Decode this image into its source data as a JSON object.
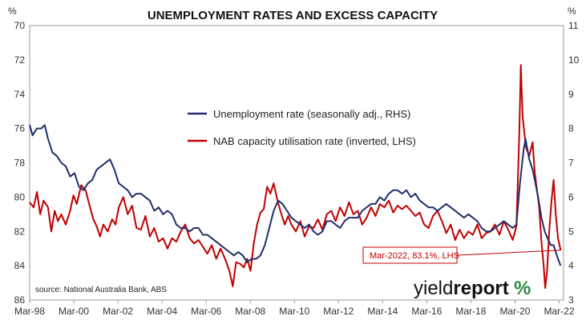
{
  "chart_data": {
    "type": "line",
    "title": "UNEMPLOYMENT RATES AND EXCESS CAPACITY",
    "left_axis_unit": "%",
    "right_axis_unit": "%",
    "left_axis": {
      "ticks": [
        70,
        72,
        74,
        76,
        78,
        80,
        82,
        84,
        86
      ],
      "range": [
        70,
        86
      ],
      "inverted": true
    },
    "right_axis": {
      "ticks": [
        3,
        4,
        5,
        6,
        7,
        8,
        9,
        10,
        11
      ],
      "range": [
        3,
        11
      ]
    },
    "x_ticks": [
      "Mar-98",
      "Mar-00",
      "Mar-02",
      "Mar-04",
      "Mar-06",
      "Mar-08",
      "Mar-10",
      "Mar-12",
      "Mar-14",
      "Mar-16",
      "Mar-18",
      "Mar-20",
      "Mar-22"
    ],
    "x_range": [
      1998.17,
      2022.3
    ],
    "source": "source: National Australia Bank, ABS",
    "brand": "yieldreport %",
    "callout": {
      "text": "Mar-2022, 83.1%, LHS",
      "x": 2022.17,
      "y": 83.1
    },
    "series": [
      {
        "name": "Unemployment rate (seasonally adj., RHS)",
        "axis": "right",
        "color": "#1f2f6b",
        "points": [
          [
            1998.17,
            8.1
          ],
          [
            1998.3,
            7.8
          ],
          [
            1998.5,
            8.0
          ],
          [
            1998.7,
            8.0
          ],
          [
            1998.85,
            8.1
          ],
          [
            1999.0,
            7.7
          ],
          [
            1999.2,
            7.3
          ],
          [
            1999.4,
            7.2
          ],
          [
            1999.6,
            7.0
          ],
          [
            1999.8,
            6.9
          ],
          [
            2000.0,
            6.6
          ],
          [
            2000.2,
            6.7
          ],
          [
            2000.4,
            6.3
          ],
          [
            2000.6,
            6.2
          ],
          [
            2000.8,
            6.4
          ],
          [
            2001.0,
            6.5
          ],
          [
            2001.2,
            6.8
          ],
          [
            2001.4,
            6.9
          ],
          [
            2001.6,
            7.0
          ],
          [
            2001.8,
            7.1
          ],
          [
            2002.0,
            6.8
          ],
          [
            2002.2,
            6.4
          ],
          [
            2002.4,
            6.3
          ],
          [
            2002.6,
            6.2
          ],
          [
            2002.8,
            6.0
          ],
          [
            2003.0,
            6.1
          ],
          [
            2003.2,
            6.1
          ],
          [
            2003.4,
            6.0
          ],
          [
            2003.6,
            5.9
          ],
          [
            2003.8,
            5.6
          ],
          [
            2004.0,
            5.7
          ],
          [
            2004.2,
            5.5
          ],
          [
            2004.4,
            5.6
          ],
          [
            2004.6,
            5.5
          ],
          [
            2004.8,
            5.2
          ],
          [
            2005.0,
            5.1
          ],
          [
            2005.2,
            5.1
          ],
          [
            2005.4,
            5.0
          ],
          [
            2005.6,
            5.1
          ],
          [
            2005.8,
            5.1
          ],
          [
            2006.0,
            4.9
          ],
          [
            2006.2,
            4.9
          ],
          [
            2006.4,
            4.8
          ],
          [
            2006.6,
            4.7
          ],
          [
            2006.8,
            4.6
          ],
          [
            2007.0,
            4.5
          ],
          [
            2007.2,
            4.4
          ],
          [
            2007.4,
            4.3
          ],
          [
            2007.6,
            4.4
          ],
          [
            2007.8,
            4.3
          ],
          [
            2008.0,
            4.1
          ],
          [
            2008.2,
            4.2
          ],
          [
            2008.4,
            4.2
          ],
          [
            2008.6,
            4.3
          ],
          [
            2008.8,
            4.6
          ],
          [
            2009.0,
            5.1
          ],
          [
            2009.2,
            5.6
          ],
          [
            2009.4,
            5.9
          ],
          [
            2009.6,
            5.8
          ],
          [
            2009.8,
            5.6
          ],
          [
            2010.0,
            5.4
          ],
          [
            2010.2,
            5.3
          ],
          [
            2010.4,
            5.2
          ],
          [
            2010.6,
            5.1
          ],
          [
            2010.8,
            5.2
          ],
          [
            2011.0,
            5.0
          ],
          [
            2011.2,
            4.9
          ],
          [
            2011.4,
            5.0
          ],
          [
            2011.6,
            5.3
          ],
          [
            2011.8,
            5.3
          ],
          [
            2012.0,
            5.2
          ],
          [
            2012.2,
            5.1
          ],
          [
            2012.4,
            5.3
          ],
          [
            2012.6,
            5.4
          ],
          [
            2012.8,
            5.4
          ],
          [
            2013.0,
            5.4
          ],
          [
            2013.2,
            5.6
          ],
          [
            2013.4,
            5.7
          ],
          [
            2013.6,
            5.8
          ],
          [
            2013.8,
            5.8
          ],
          [
            2014.0,
            6.0
          ],
          [
            2014.2,
            5.9
          ],
          [
            2014.4,
            6.1
          ],
          [
            2014.6,
            6.2
          ],
          [
            2014.8,
            6.2
          ],
          [
            2015.0,
            6.1
          ],
          [
            2015.2,
            6.2
          ],
          [
            2015.4,
            6.0
          ],
          [
            2015.6,
            6.1
          ],
          [
            2015.8,
            5.9
          ],
          [
            2016.0,
            5.8
          ],
          [
            2016.2,
            5.7
          ],
          [
            2016.4,
            5.7
          ],
          [
            2016.6,
            5.6
          ],
          [
            2016.8,
            5.7
          ],
          [
            2017.0,
            5.8
          ],
          [
            2017.2,
            5.7
          ],
          [
            2017.4,
            5.6
          ],
          [
            2017.6,
            5.5
          ],
          [
            2017.8,
            5.4
          ],
          [
            2018.0,
            5.5
          ],
          [
            2018.2,
            5.4
          ],
          [
            2018.4,
            5.3
          ],
          [
            2018.6,
            5.1
          ],
          [
            2018.8,
            5.0
          ],
          [
            2019.0,
            5.0
          ],
          [
            2019.2,
            5.1
          ],
          [
            2019.4,
            5.2
          ],
          [
            2019.6,
            5.3
          ],
          [
            2019.8,
            5.2
          ],
          [
            2020.0,
            5.1
          ],
          [
            2020.17,
            5.2
          ],
          [
            2020.33,
            6.4
          ],
          [
            2020.5,
            7.4
          ],
          [
            2020.58,
            7.7
          ],
          [
            2020.75,
            7.1
          ],
          [
            2020.9,
            6.8
          ],
          [
            2021.0,
            6.5
          ],
          [
            2021.15,
            6.0
          ],
          [
            2021.3,
            5.4
          ],
          [
            2021.45,
            5.0
          ],
          [
            2021.58,
            4.8
          ],
          [
            2021.72,
            4.6
          ],
          [
            2021.85,
            4.6
          ],
          [
            2021.95,
            4.4
          ],
          [
            2022.05,
            4.2
          ],
          [
            2022.17,
            4.0
          ]
        ]
      },
      {
        "name": "NAB capacity utilisation rate (inverted, LHS)",
        "axis": "left",
        "color": "#c00000",
        "points": [
          [
            1998.17,
            80.3
          ],
          [
            1998.35,
            80.6
          ],
          [
            1998.5,
            79.7
          ],
          [
            1998.65,
            81.0
          ],
          [
            1998.8,
            80.2
          ],
          [
            1999.0,
            80.6
          ],
          [
            1999.15,
            82.0
          ],
          [
            1999.3,
            80.8
          ],
          [
            1999.45,
            81.4
          ],
          [
            1999.6,
            81.0
          ],
          [
            1999.8,
            81.6
          ],
          [
            2000.0,
            80.8
          ],
          [
            2000.15,
            79.9
          ],
          [
            2000.3,
            80.4
          ],
          [
            2000.5,
            79.3
          ],
          [
            2000.7,
            79.6
          ],
          [
            2000.9,
            80.6
          ],
          [
            2001.05,
            81.3
          ],
          [
            2001.2,
            81.7
          ],
          [
            2001.35,
            82.3
          ],
          [
            2001.5,
            81.6
          ],
          [
            2001.7,
            82.0
          ],
          [
            2001.9,
            81.3
          ],
          [
            2002.05,
            81.6
          ],
          [
            2002.2,
            80.6
          ],
          [
            2002.4,
            80.0
          ],
          [
            2002.6,
            81.0
          ],
          [
            2002.8,
            80.5
          ],
          [
            2003.0,
            81.8
          ],
          [
            2003.2,
            81.9
          ],
          [
            2003.4,
            81.1
          ],
          [
            2003.6,
            82.3
          ],
          [
            2003.8,
            81.8
          ],
          [
            2004.0,
            82.6
          ],
          [
            2004.2,
            82.4
          ],
          [
            2004.4,
            83.0
          ],
          [
            2004.6,
            82.4
          ],
          [
            2004.8,
            82.6
          ],
          [
            2005.0,
            82.0
          ],
          [
            2005.2,
            81.6
          ],
          [
            2005.4,
            82.4
          ],
          [
            2005.6,
            82.7
          ],
          [
            2005.8,
            82.5
          ],
          [
            2006.0,
            82.9
          ],
          [
            2006.2,
            83.3
          ],
          [
            2006.4,
            82.8
          ],
          [
            2006.6,
            83.6
          ],
          [
            2006.8,
            83.0
          ],
          [
            2007.0,
            83.6
          ],
          [
            2007.2,
            84.3
          ],
          [
            2007.35,
            85.2
          ],
          [
            2007.5,
            83.8
          ],
          [
            2007.7,
            83.9
          ],
          [
            2007.85,
            84.1
          ],
          [
            2008.0,
            83.6
          ],
          [
            2008.15,
            84.3
          ],
          [
            2008.3,
            82.7
          ],
          [
            2008.45,
            81.6
          ],
          [
            2008.6,
            80.9
          ],
          [
            2008.75,
            80.7
          ],
          [
            2008.9,
            79.4
          ],
          [
            2009.05,
            79.8
          ],
          [
            2009.2,
            79.2
          ],
          [
            2009.35,
            80.1
          ],
          [
            2009.5,
            80.8
          ],
          [
            2009.7,
            81.6
          ],
          [
            2009.85,
            81.1
          ],
          [
            2010.0,
            81.6
          ],
          [
            2010.2,
            82.0
          ],
          [
            2010.4,
            81.4
          ],
          [
            2010.6,
            82.3
          ],
          [
            2010.8,
            81.7
          ],
          [
            2011.0,
            81.8
          ],
          [
            2011.2,
            81.3
          ],
          [
            2011.4,
            81.9
          ],
          [
            2011.6,
            81.0
          ],
          [
            2011.8,
            80.8
          ],
          [
            2012.0,
            81.4
          ],
          [
            2012.2,
            80.6
          ],
          [
            2012.4,
            81.1
          ],
          [
            2012.6,
            80.3
          ],
          [
            2012.8,
            81.0
          ],
          [
            2013.0,
            80.8
          ],
          [
            2013.2,
            81.6
          ],
          [
            2013.4,
            81.2
          ],
          [
            2013.6,
            80.6
          ],
          [
            2013.8,
            81.1
          ],
          [
            2014.0,
            80.4
          ],
          [
            2014.2,
            80.6
          ],
          [
            2014.4,
            80.2
          ],
          [
            2014.6,
            80.9
          ],
          [
            2014.8,
            80.5
          ],
          [
            2015.0,
            80.7
          ],
          [
            2015.2,
            80.5
          ],
          [
            2015.4,
            80.8
          ],
          [
            2015.6,
            81.1
          ],
          [
            2015.8,
            80.9
          ],
          [
            2016.0,
            81.6
          ],
          [
            2016.2,
            81.8
          ],
          [
            2016.4,
            81.1
          ],
          [
            2016.6,
            80.8
          ],
          [
            2016.8,
            81.4
          ],
          [
            2017.0,
            82.1
          ],
          [
            2017.2,
            81.6
          ],
          [
            2017.4,
            82.5
          ],
          [
            2017.6,
            81.9
          ],
          [
            2017.8,
            82.4
          ],
          [
            2018.0,
            82.0
          ],
          [
            2018.2,
            82.2
          ],
          [
            2018.4,
            81.6
          ],
          [
            2018.6,
            82.4
          ],
          [
            2018.8,
            82.1
          ],
          [
            2019.0,
            82.0
          ],
          [
            2019.2,
            81.6
          ],
          [
            2019.4,
            82.2
          ],
          [
            2019.6,
            81.4
          ],
          [
            2019.8,
            81.9
          ],
          [
            2020.0,
            82.5
          ],
          [
            2020.17,
            81.7
          ],
          [
            2020.3,
            76.3
          ],
          [
            2020.37,
            72.3
          ],
          [
            2020.45,
            75.3
          ],
          [
            2020.6,
            77.1
          ],
          [
            2020.75,
            77.6
          ],
          [
            2020.9,
            76.8
          ],
          [
            2021.0,
            78.6
          ],
          [
            2021.1,
            79.6
          ],
          [
            2021.2,
            80.6
          ],
          [
            2021.3,
            82.6
          ],
          [
            2021.4,
            84.0
          ],
          [
            2021.47,
            85.3
          ],
          [
            2021.55,
            84.4
          ],
          [
            2021.65,
            82.0
          ],
          [
            2021.75,
            80.3
          ],
          [
            2021.85,
            79.0
          ],
          [
            2021.95,
            81.0
          ],
          [
            2022.05,
            82.4
          ],
          [
            2022.17,
            83.1
          ]
        ]
      }
    ]
  }
}
